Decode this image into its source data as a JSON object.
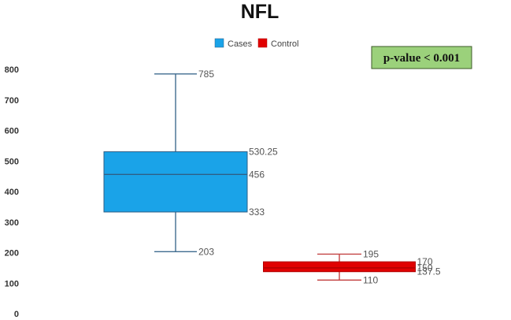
{
  "chart_data": {
    "type": "box",
    "title": "NFL",
    "xlabel": "",
    "ylabel": "",
    "ylim": [
      0,
      800
    ],
    "yticks": [
      0,
      100,
      200,
      300,
      400,
      500,
      600,
      700,
      800
    ],
    "grid": false,
    "legend": {
      "placement": "top-center",
      "entries": [
        "Cases",
        "Control"
      ]
    },
    "annotation": "p-value < 0.001",
    "series": [
      {
        "name": "Cases",
        "color": "#1aa3e8",
        "stroke": "#2f5f86",
        "whisker_color": "#3f6b8f",
        "min": 203,
        "q1": 333,
        "median": 456,
        "q3": 530.25,
        "max": 785,
        "labels": {
          "max": "785",
          "q3": "530.25",
          "median": "456",
          "q1": "333",
          "min": "203"
        }
      },
      {
        "name": "Control",
        "color": "#e00000",
        "stroke": "#b00000",
        "whisker_color": "#c44444",
        "min": 110,
        "q1": 137.5,
        "median": 150,
        "q3": 170,
        "max": 195,
        "labels": {
          "max": "195",
          "q3": "170",
          "median": "150",
          "q1": "137.5",
          "min": "110"
        }
      }
    ]
  }
}
